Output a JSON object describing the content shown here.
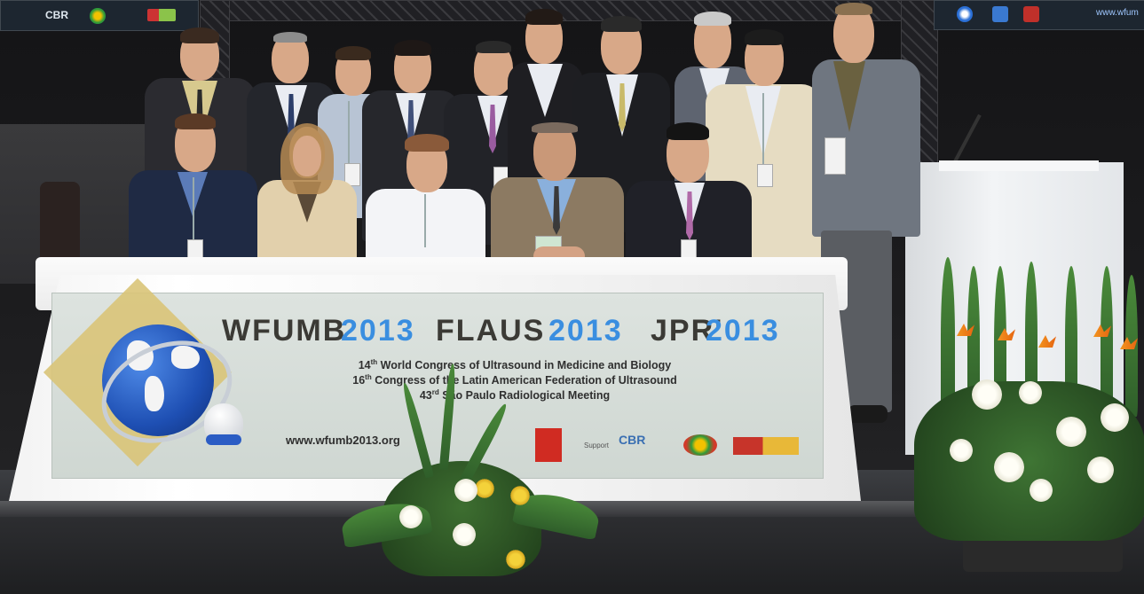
{
  "banner": {
    "title_parts": [
      {
        "text": "WFUMB",
        "color": "dark"
      },
      {
        "text": "2013",
        "color": "blue"
      },
      {
        "text": "FLAUS",
        "color": "dark"
      },
      {
        "text": "2013",
        "color": "blue"
      },
      {
        "text": "JPR'",
        "color": "dark"
      },
      {
        "text": "2013",
        "color": "blue"
      }
    ],
    "line1_num": "14",
    "line1_sup": "th",
    "line1_text": " World Congress of Ultrasound in Medicine and Biology",
    "line2_num": "16",
    "line2_sup": "th",
    "line2_text": " Congress of the Latin American Federation of Ultrasound",
    "line3_num": "43",
    "line3_sup": "rd",
    "line3_text": " São Paulo Radiological Meeting",
    "url": "www.wfumb2013.org",
    "support_label": "Support",
    "sponsor_cbr": "CBR"
  },
  "screens": {
    "left_logo": "CBR",
    "right_url": "www.wfum"
  },
  "colors": {
    "banner_dark_text": "#3b3a35",
    "banner_blue_text": "#3a8ee0",
    "diamond_gold": "#d9c478",
    "globe_blue": "#1e4fb3"
  }
}
